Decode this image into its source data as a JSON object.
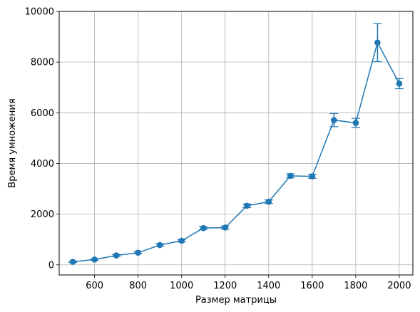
{
  "chart_data": {
    "type": "line",
    "title": "",
    "xlabel": "Размер матрицы",
    "ylabel": "Время умножения",
    "xlim": [
      437.5,
      2062.5
    ],
    "ylim": [
      -400,
      10000
    ],
    "x_ticks": [
      600,
      800,
      1000,
      1200,
      1400,
      1600,
      1800,
      2000
    ],
    "x_tick_labels": [
      "600",
      "800",
      "1000",
      "1200",
      "1400",
      "1600",
      "1800",
      "2000"
    ],
    "y_ticks": [
      0,
      2000,
      4000,
      6000,
      8000,
      10000
    ],
    "y_tick_labels": [
      "0",
      "2000",
      "4000",
      "6000",
      "8000",
      "10000"
    ],
    "grid": true,
    "color": "#1f77b4",
    "series": [
      {
        "x": [
          500,
          600,
          700,
          800,
          900,
          1000,
          1100,
          1200,
          1300,
          1400,
          1500,
          1600,
          1700,
          1800,
          1900,
          2000
        ],
        "y": [
          120,
          210,
          370,
          480,
          780,
          950,
          1450,
          1470,
          2330,
          2490,
          3510,
          3490,
          5710,
          5600,
          8770,
          7150
        ],
        "yerr": [
          30,
          30,
          40,
          40,
          50,
          50,
          60,
          60,
          70,
          70,
          80,
          80,
          260,
          180,
          750,
          200
        ]
      }
    ]
  }
}
